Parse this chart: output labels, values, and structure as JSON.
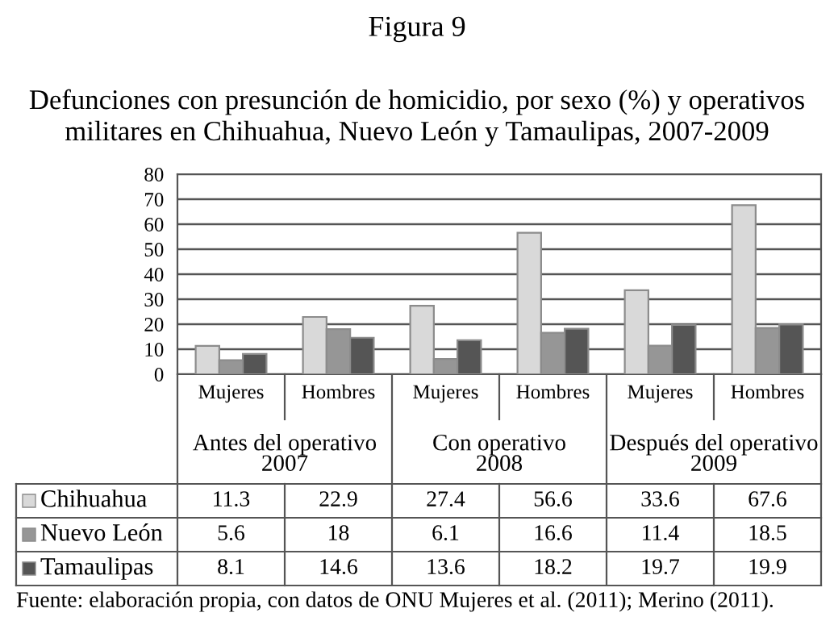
{
  "chart_data": {
    "type": "bar",
    "title": "Figura 9",
    "subtitle": "Defunciones con presunción de homicidio, por sexo (%) y operativos militares en Chihuahua, Nuevo León y Tamaulipas, 2007-2009",
    "categories": [
      "Mujeres",
      "Hombres",
      "Mujeres",
      "Hombres",
      "Mujeres",
      "Hombres"
    ],
    "series": [
      {
        "name": "Chihuahua",
        "color": "#d9d9d9",
        "values": [
          11.3,
          22.9,
          27.4,
          56.6,
          33.6,
          67.6
        ]
      },
      {
        "name": "Nuevo León",
        "color": "#969696",
        "values": [
          5.6,
          18,
          6.1,
          16.6,
          11.4,
          18.5
        ]
      },
      {
        "name": "Tamaulipas",
        "color": "#555555",
        "values": [
          8.1,
          14.6,
          13.6,
          18.2,
          19.7,
          19.9
        ]
      }
    ],
    "ylim": [
      0,
      80
    ],
    "yticks": [
      0,
      10,
      20,
      30,
      40,
      50,
      60,
      70,
      80
    ],
    "grid": "y",
    "legend": "bottom",
    "data_labels": true,
    "annotations": [
      "Antes del operativo\n2007",
      "Con operativo\n2008",
      "Después del operativo\n2009",
      "Fuente: elaboración propia, con datos de ONU Mujeres et al. (2011); Merino (2011)."
    ]
  }
}
